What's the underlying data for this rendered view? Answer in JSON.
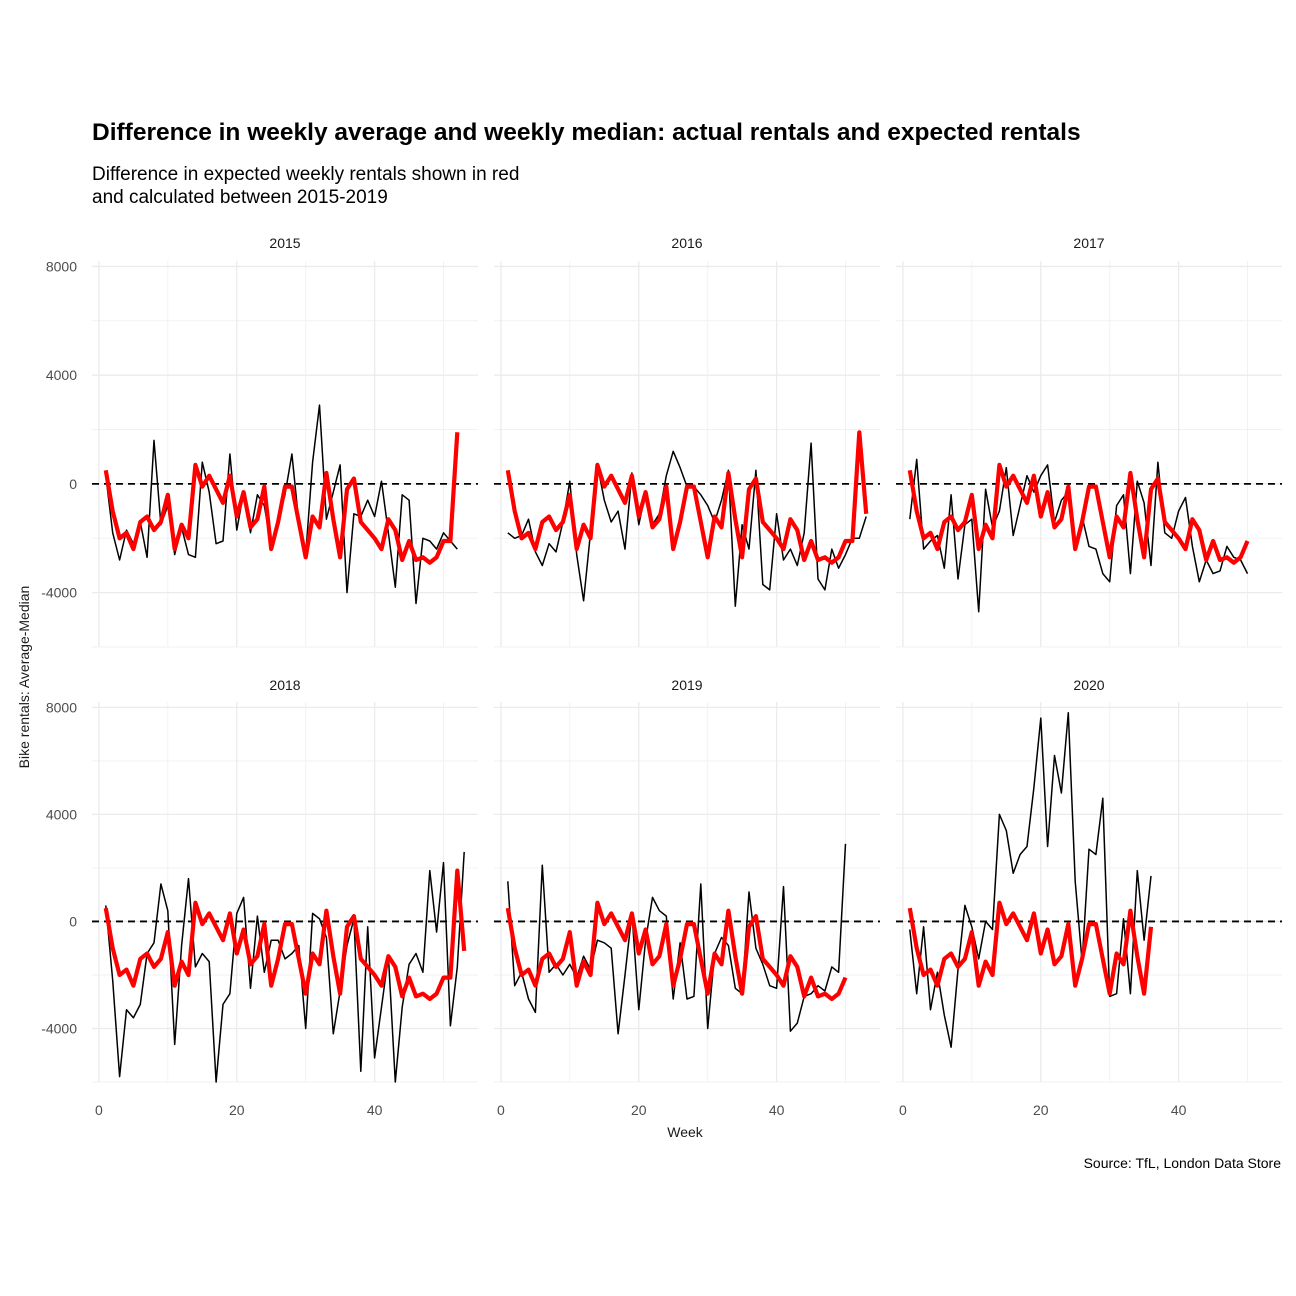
{
  "chart_data": {
    "type": "line",
    "title": "Difference in weekly average and weekly median: actual rentals and expected rentals",
    "subtitle_lines": [
      "Difference in expected weekly rentals shown in red",
      "and calculated between 2015-2019"
    ],
    "caption": "Source: TfL, London Data Store",
    "xlabel": "Week",
    "ylabel": "Bike rentals: Average-Median",
    "xlim": [
      -1,
      55
    ],
    "ylim": [
      -6000,
      8200
    ],
    "x_ticks": [
      0,
      20,
      40
    ],
    "y_ticks": [
      8000,
      4000,
      0,
      -4000
    ],
    "y_tick_labels": [
      "8000",
      "4000",
      "0",
      "-4000"
    ],
    "reference_line": 0,
    "colors": {
      "actual": "#000000",
      "expected": "#ff0000",
      "reference": "#000000"
    },
    "expected": [
      500,
      -1000,
      -2000,
      -1800,
      -2400,
      -1400,
      -1200,
      -1700,
      -1400,
      -400,
      -2400,
      -1500,
      -2000,
      700,
      -100,
      300,
      -200,
      -700,
      300,
      -1200,
      -300,
      -1600,
      -1300,
      -100,
      -2400,
      -1400,
      -100,
      -100,
      -1400,
      -2700,
      -1200,
      -1600,
      400,
      -1300,
      -2700,
      -200,
      200,
      -1400,
      -1700,
      -2000,
      -2400,
      -1300,
      -1700,
      -2800,
      -2100,
      -2800,
      -2700,
      -2900,
      -2700,
      -2100,
      -2100,
      1900,
      -1100
    ],
    "panels": [
      {
        "label": "2015",
        "actual": [
          300,
          -1800,
          -2800,
          -1700,
          -2200,
          -1400,
          -2700,
          1600,
          -1500,
          -800,
          -2600,
          -1600,
          -2600,
          -2700,
          800,
          -300,
          -2200,
          -2100,
          1100,
          -1700,
          -300,
          -1800,
          -400,
          -800,
          -2300,
          -1300,
          -400,
          1100,
          -1400,
          -2600,
          800,
          2900,
          -1300,
          -300,
          700,
          -4000,
          -1100,
          -1200,
          -600,
          -1200,
          100,
          -1800,
          -3800,
          -400,
          -600,
          -4400,
          -2000,
          -2100,
          -2400,
          -1800,
          -2100,
          -2400
        ]
      },
      {
        "label": "2016",
        "actual": [
          -1800,
          -2000,
          -1900,
          -1300,
          -2500,
          -3000,
          -2200,
          -2500,
          -1400,
          100,
          -2600,
          -4300,
          -1800,
          700,
          -600,
          -1400,
          -1000,
          -2400,
          400,
          -1500,
          -300,
          -1500,
          -1100,
          300,
          1200,
          600,
          -100,
          -100,
          -400,
          -800,
          -1400,
          -600,
          500,
          -4500,
          -1500,
          -2400,
          500,
          -3700,
          -3900,
          -1100,
          -2800,
          -2400,
          -3000,
          -1800,
          1500,
          -3500,
          -3900,
          -2400,
          -3100,
          -2600,
          -2000,
          -2000,
          -1200
        ]
      },
      {
        "label": "2017",
        "actual": [
          -1300,
          900,
          -2400,
          -2100,
          -1900,
          -3100,
          -400,
          -3500,
          -1500,
          -1300,
          -4700,
          -200,
          -1600,
          -1000,
          600,
          -1900,
          -800,
          300,
          -300,
          300,
          700,
          -1400,
          -600,
          -300,
          -2400,
          -1200,
          -2300,
          -2400,
          -3300,
          -3600,
          -800,
          -400,
          -3300,
          100,
          -700,
          -3000,
          800,
          -1800,
          -2000,
          -1000,
          -500,
          -2300,
          -3600,
          -2800,
          -3300,
          -3200,
          -2300,
          -2700,
          -2800,
          -3300
        ]
      },
      {
        "label": "2018",
        "actual": [
          600,
          -2200,
          -5800,
          -3300,
          -3600,
          -3100,
          -1200,
          -800,
          1400,
          400,
          -4600,
          -900,
          1600,
          -1700,
          -1200,
          -1500,
          -6000,
          -3100,
          -2700,
          300,
          900,
          -2500,
          200,
          -1900,
          -700,
          -700,
          -1400,
          -1200,
          -900,
          -4000,
          300,
          100,
          -600,
          -4200,
          -2600,
          -900,
          100,
          -5600,
          -200,
          -5100,
          -3200,
          -1300,
          -6000,
          -3200,
          -1600,
          -1200,
          -1900,
          1900,
          -400,
          2200,
          -3900,
          -1700,
          2600
        ]
      },
      {
        "label": "2019",
        "actual": [
          1500,
          -2400,
          -1900,
          -2900,
          -3400,
          2100,
          -1900,
          -1600,
          -2000,
          -1600,
          -2100,
          -1300,
          -1800,
          -700,
          -800,
          -1000,
          -4200,
          -2000,
          300,
          -3300,
          -700,
          900,
          400,
          200,
          -2900,
          -800,
          -2900,
          -2800,
          1400,
          -4000,
          -1200,
          -600,
          -900,
          -2500,
          -2700,
          1100,
          -1000,
          -1600,
          -2400,
          -2500,
          1300,
          -4100,
          -3800,
          -2800,
          -2700,
          -2400,
          -2600,
          -1700,
          -1900,
          2900
        ]
      },
      {
        "label": "2020",
        "actual": [
          -300,
          -2700,
          -200,
          -3300,
          -1900,
          -3500,
          -4700,
          -1800,
          600,
          -200,
          -1400,
          0,
          -300,
          4000,
          3400,
          1800,
          2500,
          2800,
          5000,
          7600,
          2800,
          6200,
          4800,
          7800,
          1500,
          -1500,
          2700,
          2500,
          4600,
          -2800,
          -2700,
          100,
          -2700,
          1900,
          -700,
          1700
        ]
      }
    ]
  }
}
